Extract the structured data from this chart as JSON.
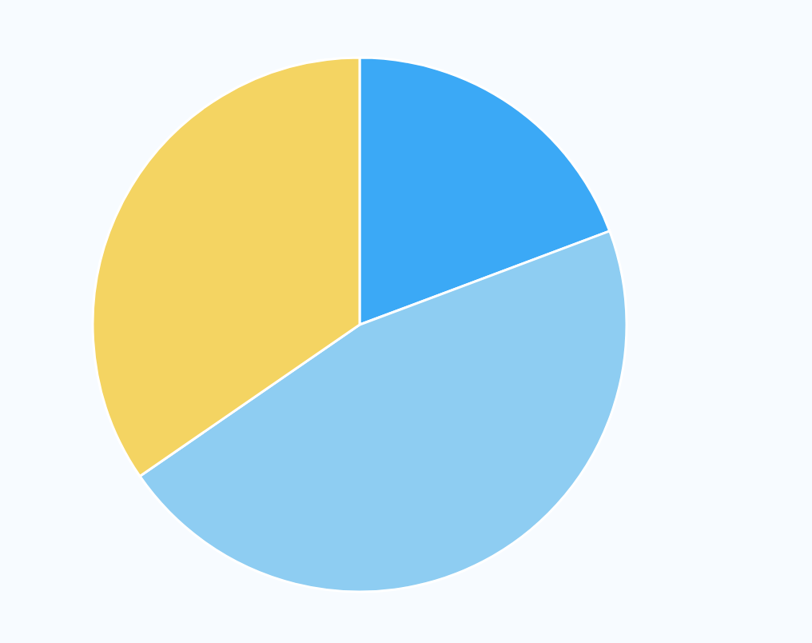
{
  "chart_data": {
    "type": "pie",
    "categories": [
      null,
      null,
      null
    ],
    "values": [
      19.3,
      46.1,
      34.6
    ],
    "colors": [
      "#3ba9f6",
      "#8ecdf2",
      "#f4d462"
    ]
  }
}
